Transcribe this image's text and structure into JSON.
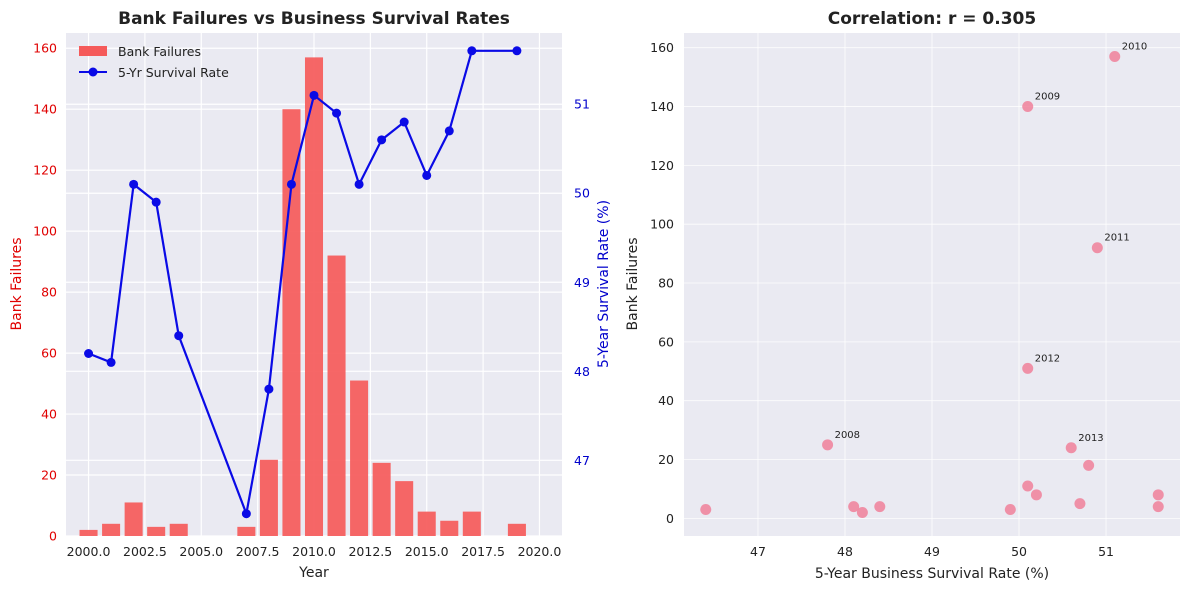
{
  "chart_data": [
    {
      "type": "bar+line",
      "title": "Bank Failures vs Business Survival Rates",
      "xlabel": "Year",
      "ylabel": "Bank Failures",
      "ylabel_right": "5-Year Survival Rate (%)",
      "xlim": [
        1999,
        2021
      ],
      "ylim": [
        0,
        165
      ],
      "ylim_right": [
        46.15,
        51.8
      ],
      "xticks": [
        2000,
        2002.5,
        2005,
        2007.5,
        2010,
        2012.5,
        2015,
        2017.5,
        2020
      ],
      "xtick_labels": [
        "2000.0",
        "2002.5",
        "2005.0",
        "2007.5",
        "2010.0",
        "2012.5",
        "2015.0",
        "2017.5",
        "2020.0"
      ],
      "yticks": [
        0,
        20,
        40,
        60,
        80,
        100,
        120,
        140,
        160
      ],
      "yticks_right": [
        47,
        48,
        49,
        50,
        51
      ],
      "legend": {
        "position": "top-left",
        "entries": [
          "Bank Failures",
          "5-Yr Survival Rate"
        ]
      },
      "colors": {
        "bars": "#f55a5a",
        "line": "#0a0ae6",
        "left_axis": "#e00000",
        "right_axis": "#0000cc"
      },
      "bars": {
        "name": "Bank Failures",
        "x": [
          2000,
          2001,
          2002,
          2003,
          2004,
          2007,
          2008,
          2009,
          2010,
          2011,
          2012,
          2013,
          2014,
          2015,
          2016,
          2017,
          2019
        ],
        "values": [
          2,
          4,
          11,
          3,
          4,
          3,
          25,
          140,
          157,
          92,
          51,
          24,
          18,
          8,
          5,
          8,
          4
        ]
      },
      "line": {
        "name": "5-Yr Survival Rate",
        "x": [
          2000,
          2001,
          2002,
          2003,
          2004,
          2007,
          2008,
          2009,
          2010,
          2011,
          2012,
          2013,
          2014,
          2015,
          2016,
          2017,
          2019
        ],
        "values": [
          48.2,
          48.1,
          50.1,
          49.9,
          48.4,
          46.4,
          47.8,
          50.1,
          51.1,
          50.9,
          50.1,
          50.6,
          50.8,
          50.2,
          50.7,
          51.6,
          51.6
        ]
      },
      "grid": true
    },
    {
      "type": "scatter",
      "title": "Correlation: r = 0.305",
      "xlabel": "5-Year Business Survival Rate (%)",
      "ylabel": "Bank Failures",
      "xlim": [
        46.15,
        51.85
      ],
      "ylim": [
        -6,
        165
      ],
      "xticks": [
        47,
        48,
        49,
        50,
        51
      ],
      "yticks": [
        0,
        20,
        40,
        60,
        80,
        100,
        120,
        140,
        160
      ],
      "colors": {
        "points": "#f0809a"
      },
      "points": [
        {
          "x": 46.4,
          "y": 3
        },
        {
          "x": 47.8,
          "y": 25
        },
        {
          "x": 48.1,
          "y": 4
        },
        {
          "x": 48.2,
          "y": 2
        },
        {
          "x": 48.4,
          "y": 4
        },
        {
          "x": 49.9,
          "y": 3
        },
        {
          "x": 50.1,
          "y": 140
        },
        {
          "x": 51.1,
          "y": 157
        },
        {
          "x": 50.9,
          "y": 92
        },
        {
          "x": 50.1,
          "y": 51
        },
        {
          "x": 50.6,
          "y": 24
        },
        {
          "x": 50.8,
          "y": 18
        },
        {
          "x": 50.1,
          "y": 11
        },
        {
          "x": 50.2,
          "y": 8
        },
        {
          "x": 50.7,
          "y": 5
        },
        {
          "x": 51.6,
          "y": 8
        },
        {
          "x": 51.6,
          "y": 4
        }
      ],
      "annotations": [
        {
          "text": "2008",
          "x": 47.8,
          "y": 25
        },
        {
          "text": "2009",
          "x": 50.1,
          "y": 140
        },
        {
          "text": "2010",
          "x": 51.1,
          "y": 157
        },
        {
          "text": "2011",
          "x": 50.9,
          "y": 92
        },
        {
          "text": "2012",
          "x": 50.1,
          "y": 51
        },
        {
          "text": "2013",
          "x": 50.6,
          "y": 24
        }
      ],
      "grid": true
    }
  ]
}
